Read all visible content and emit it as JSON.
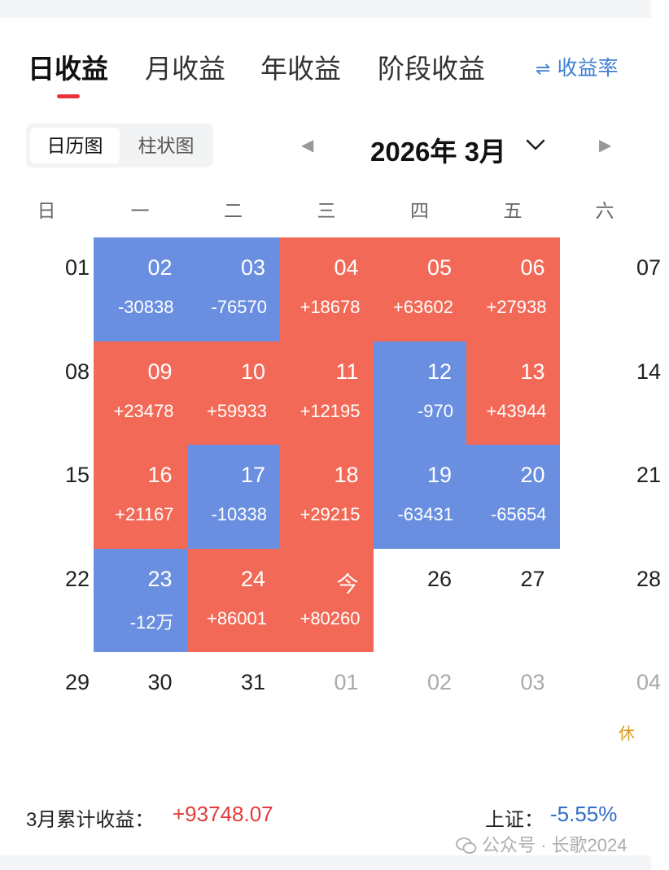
{
  "tabs": [
    "日收益",
    "月收益",
    "年收益",
    "阶段收益"
  ],
  "rate_toggle": {
    "icon": "swap-arrows-icon",
    "label": "收益率"
  },
  "view_toggle": [
    "日历图",
    "柱状图"
  ],
  "month_nav": {
    "title": "2026年 3月",
    "prev_icon": "triangle-left-icon",
    "next_icon": "triangle-right-icon",
    "dropdown_icon": "chevron-down-icon"
  },
  "weekdays": [
    "日",
    "一",
    "二",
    "三",
    "四",
    "五",
    "六"
  ],
  "colors": {
    "gain": "#f26a57",
    "loss": "#6b8fe0",
    "accent_red": "#e23b3b",
    "accent_blue": "#2f6fc9",
    "holiday": "#d89a1a"
  },
  "weeks": [
    [
      {
        "day": "01",
        "type": "plain"
      },
      {
        "day": "02",
        "value": "-30838",
        "type": "loss"
      },
      {
        "day": "03",
        "value": "-76570",
        "type": "loss"
      },
      {
        "day": "04",
        "value": "+18678",
        "type": "gain"
      },
      {
        "day": "05",
        "value": "+63602",
        "type": "gain"
      },
      {
        "day": "06",
        "value": "+27938",
        "type": "gain"
      },
      {
        "day": "07",
        "type": "plain"
      }
    ],
    [
      {
        "day": "08",
        "type": "plain"
      },
      {
        "day": "09",
        "value": "+23478",
        "type": "gain"
      },
      {
        "day": "10",
        "value": "+59933",
        "type": "gain"
      },
      {
        "day": "11",
        "value": "+12195",
        "type": "gain"
      },
      {
        "day": "12",
        "value": "-970",
        "type": "loss"
      },
      {
        "day": "13",
        "value": "+43944",
        "type": "gain"
      },
      {
        "day": "14",
        "type": "plain"
      }
    ],
    [
      {
        "day": "15",
        "type": "plain"
      },
      {
        "day": "16",
        "value": "+21167",
        "type": "gain"
      },
      {
        "day": "17",
        "value": "-10338",
        "type": "loss"
      },
      {
        "day": "18",
        "value": "+29215",
        "type": "gain"
      },
      {
        "day": "19",
        "value": "-63431",
        "type": "loss"
      },
      {
        "day": "20",
        "value": "-65654",
        "type": "loss"
      },
      {
        "day": "21",
        "type": "plain"
      }
    ],
    [
      {
        "day": "22",
        "type": "plain"
      },
      {
        "day": "23",
        "value": "-12万",
        "type": "loss"
      },
      {
        "day": "24",
        "value": "+86001",
        "type": "gain"
      },
      {
        "day": "今",
        "value": "+80260",
        "type": "gain"
      },
      {
        "day": "26",
        "type": "plain"
      },
      {
        "day": "27",
        "type": "plain"
      },
      {
        "day": "28",
        "type": "plain"
      }
    ],
    [
      {
        "day": "29",
        "type": "plain"
      },
      {
        "day": "30",
        "type": "plain"
      },
      {
        "day": "31",
        "type": "plain"
      },
      {
        "day": "01",
        "type": "next"
      },
      {
        "day": "02",
        "type": "next"
      },
      {
        "day": "03",
        "type": "next"
      },
      {
        "day": "04",
        "type": "next",
        "holiday": "休"
      }
    ]
  ],
  "summary": {
    "label": "3月累计收益：",
    "value": "+93748.07"
  },
  "index": {
    "label": "上证：",
    "value": "-5.55%"
  },
  "watermark": {
    "icon": "wechat-icon",
    "text": "公众号 · 长歌2024"
  }
}
